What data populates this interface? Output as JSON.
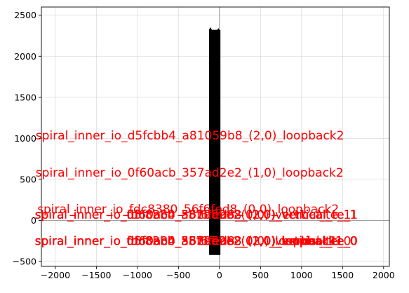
{
  "chart_data": {
    "type": "line",
    "title": "",
    "xlabel": "",
    "ylabel": "",
    "xlim": [
      -2170,
      2070
    ],
    "ylim": [
      -560,
      2600
    ],
    "grid": true,
    "x_ticks": [
      -2000,
      -1500,
      -1000,
      -500,
      0,
      500,
      1000,
      1500,
      2000
    ],
    "y_ticks": [
      -500,
      0,
      500,
      1000,
      1500,
      2000,
      2500
    ],
    "zero_lines": {
      "x": 0,
      "y": 0
    },
    "series": [
      {
        "x": [
          -118,
          -110,
          -102,
          -94,
          -86,
          -78,
          -70,
          -62,
          -54,
          -46,
          -38,
          -30,
          -22,
          -14,
          -6,
          2
        ],
        "y_min": -420,
        "y_max": 2320,
        "color": "#000000"
      }
    ],
    "markers": [
      {
        "x": -110,
        "y": 2320
      },
      {
        "x": -110,
        "y": 1910
      },
      {
        "x": -14,
        "y": 2310
      },
      {
        "x": -14,
        "y": 1950
      },
      {
        "x": -14,
        "y": 1360
      },
      {
        "x": -14,
        "y": 930
      }
    ],
    "annotations": [
      {
        "text": "spiral_inner_io_d5fcbb4_a81059b8_(2,0)_loopback2",
        "x": -2240,
        "y": 985,
        "color": "#ff0000"
      },
      {
        "text": "spiral_inner_io_0f60acb_357ad2e2_(1,0)_loopback2",
        "x": -2240,
        "y": 535,
        "color": "#ff0000"
      },
      {
        "text": "spiral_inner_io_fdc8380_56f6fed8_(0,0)_loopback2",
        "x": -2220,
        "y": 90,
        "color": "#ff0000"
      },
      {
        "text": "spiral_inner_io_d5fcbb4_a81059b8_(2,0)_vertical_te_1",
        "x": -2250,
        "y": 20,
        "color": "#ff0000"
      },
      {
        "text": "spiral_inner_io_0f60acb_357ad2e2_(1,0)_vertical_te_1",
        "x": -2250,
        "y": 20,
        "color": "#ff0000"
      },
      {
        "text": "spiral_inner_io_fdc8380_56f6fed8_(0,0)_vertical_te_1",
        "x": -2250,
        "y": 20,
        "color": "#ff0000"
      },
      {
        "text": "spiral_inner_io_d5fcbb4_a81059b8_(2,0)_vertical_te_0",
        "x": -2250,
        "y": -300,
        "color": "#ff0000"
      },
      {
        "text": "spiral_inner_io_0f60acb_357ad2e2_(1,0)_vertical_te_0",
        "x": -2250,
        "y": -300,
        "color": "#ff0000"
      },
      {
        "text": "spiral_inner_io_fdc8380_56f6fed8_(0,0)_vertical_te_0",
        "x": -2250,
        "y": -300,
        "color": "#ff0000"
      },
      {
        "text": "spiral_inner_io_d5fcbb4_a81059b8_(2,0)_loopback1",
        "x": -2250,
        "y": -300,
        "color": "#ff0000"
      },
      {
        "text": "spiral_inner_io_0f60acb_357ad2e2_(1,0)_loopback1",
        "x": -2250,
        "y": -300,
        "color": "#ff0000"
      },
      {
        "text": "spiral_inner_io_fdc8380_56f6fed8_(0,0)_loopback1",
        "x": -2250,
        "y": -300,
        "color": "#ff0000"
      }
    ]
  }
}
